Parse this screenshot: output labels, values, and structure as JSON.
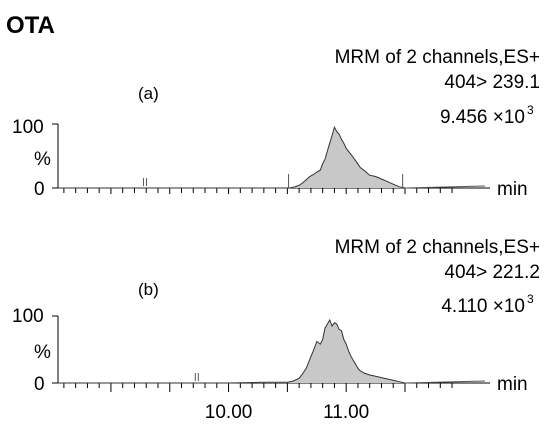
{
  "title": "OTA",
  "xunit": "min",
  "chart_data": [
    {
      "type": "area",
      "panel_label": "(a)",
      "header": "MRM of 2 channels,ES+",
      "transition": "404> 239.1",
      "intensity_mantissa": "9.456 ×10",
      "intensity_exp": "3",
      "ylabel": "%",
      "yticks": [
        "100",
        "0"
      ],
      "ylim": [
        0,
        100
      ],
      "xlim": [
        8.55,
        11.5
      ],
      "xunit": "min",
      "markers": [
        9.29,
        10.51,
        11.48
      ],
      "x": [
        8.55,
        9.0,
        9.5,
        10.0,
        10.3,
        10.5,
        10.53,
        10.56,
        10.6,
        10.63,
        10.66,
        10.69,
        10.72,
        10.75,
        10.78,
        10.8,
        10.82,
        10.84,
        10.86,
        10.88,
        10.9,
        10.92,
        10.94,
        10.96,
        10.98,
        11.0,
        11.03,
        11.06,
        11.09,
        11.12,
        11.15,
        11.2,
        11.25,
        11.3,
        11.35,
        11.4,
        11.45,
        11.5
      ],
      "y": [
        0,
        0,
        0,
        0,
        0,
        0,
        0.5,
        1.5,
        4,
        8,
        13,
        18,
        21,
        25,
        28,
        38,
        45,
        58,
        70,
        82,
        95,
        88,
        84,
        76,
        70,
        62,
        55,
        48,
        40,
        32,
        28,
        20,
        18,
        14,
        10,
        6,
        2,
        0
      ]
    },
    {
      "type": "area",
      "panel_label": "(b)",
      "header": "MRM of 2 channels,ES+",
      "transition": "404> 221.2",
      "intensity_mantissa": "4.110 ×10",
      "intensity_exp": "3",
      "ylabel": "%",
      "yticks": [
        "100",
        "0"
      ],
      "xticklabels": [
        "10.00",
        "11.00"
      ],
      "xticks": [
        10.0,
        11.0
      ],
      "ylim": [
        0,
        100
      ],
      "xlim": [
        8.55,
        11.5
      ],
      "xunit": "min",
      "markers": [
        9.73
      ],
      "x": [
        8.55,
        9.0,
        9.5,
        10.0,
        10.3,
        10.5,
        10.55,
        10.6,
        10.63,
        10.66,
        10.69,
        10.72,
        10.75,
        10.78,
        10.8,
        10.82,
        10.84,
        10.86,
        10.88,
        10.9,
        10.92,
        10.94,
        10.96,
        10.98,
        11.0,
        11.02,
        11.04,
        11.06,
        11.08,
        11.1,
        11.12,
        11.15,
        11.2,
        11.25,
        11.3,
        11.35,
        11.4,
        11.45,
        11.5
      ],
      "y": [
        0,
        0,
        0,
        0,
        1,
        1,
        3,
        7,
        14,
        22,
        35,
        48,
        62,
        58,
        65,
        82,
        88,
        94,
        85,
        90,
        88,
        80,
        78,
        65,
        58,
        48,
        40,
        34,
        28,
        22,
        18,
        15,
        12,
        10,
        8,
        6,
        4,
        2,
        0
      ]
    }
  ]
}
